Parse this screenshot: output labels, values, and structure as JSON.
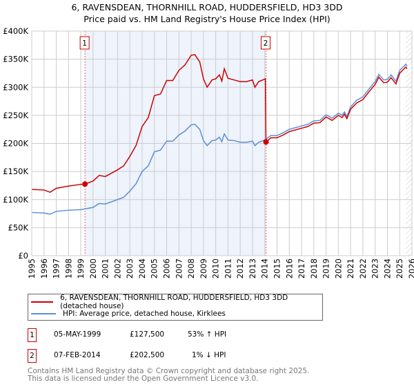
{
  "title": "6, RAVENSDEAN, THORNHILL ROAD, HUDDERSFIELD, HD3 3DD",
  "subtitle": "Price paid vs. HM Land Registry's House Price Index (HPI)",
  "chart_data": {
    "type": "line",
    "title": "6, RAVENSDEAN, THORNHILL ROAD, HUDDERSFIELD, HD3 3DD",
    "subtitle": "Price paid vs. HM Land Registry's House Price Index (HPI)",
    "xlim": [
      1995,
      2026
    ],
    "ylim": [
      0,
      400000
    ],
    "y_ticks": [
      {
        "v": 0,
        "label": "£0"
      },
      {
        "v": 50000,
        "label": "£50K"
      },
      {
        "v": 100000,
        "label": "£100K"
      },
      {
        "v": 150000,
        "label": "£150K"
      },
      {
        "v": 200000,
        "label": "£200K"
      },
      {
        "v": 250000,
        "label": "£250K"
      },
      {
        "v": 300000,
        "label": "£300K"
      },
      {
        "v": 350000,
        "label": "£350K"
      },
      {
        "v": 400000,
        "label": "£400K"
      }
    ],
    "x_ticks": [
      "1995",
      "1996",
      "1997",
      "1998",
      "1999",
      "2000",
      "2001",
      "2002",
      "2003",
      "2004",
      "2005",
      "2006",
      "2007",
      "2008",
      "2009",
      "2010",
      "2011",
      "2012",
      "2013",
      "2014",
      "2015",
      "2016",
      "2017",
      "2018",
      "2019",
      "2020",
      "2021",
      "2022",
      "2023",
      "2024",
      "2025",
      "2026"
    ],
    "grid": true,
    "shaded_range": [
      1999.34,
      2014.1
    ],
    "forecast_hatch_from": 2025.5,
    "series": [
      {
        "name": "6, RAVENSDEAN, THORNHILL ROAD, HUDDERSFIELD, HD3 3DD (detached house)",
        "color": "#cc0000",
        "points": [
          [
            1995,
            118000
          ],
          [
            1996,
            117000
          ],
          [
            1996.5,
            113000
          ],
          [
            1997,
            120000
          ],
          [
            1998,
            124000
          ],
          [
            1999,
            127000
          ],
          [
            1999.34,
            127500
          ],
          [
            2000,
            133000
          ],
          [
            2000.5,
            143000
          ],
          [
            2001,
            141000
          ],
          [
            2002,
            153000
          ],
          [
            2002.5,
            160000
          ],
          [
            2003,
            177000
          ],
          [
            2003.5,
            196000
          ],
          [
            2004,
            230000
          ],
          [
            2004.5,
            246000
          ],
          [
            2005,
            285000
          ],
          [
            2005.5,
            288000
          ],
          [
            2006,
            312000
          ],
          [
            2006.5,
            312000
          ],
          [
            2007,
            330000
          ],
          [
            2007.5,
            340000
          ],
          [
            2008,
            357000
          ],
          [
            2008.3,
            358000
          ],
          [
            2008.7,
            345000
          ],
          [
            2009,
            315000
          ],
          [
            2009.3,
            300000
          ],
          [
            2009.7,
            313000
          ],
          [
            2010,
            315000
          ],
          [
            2010.3,
            322000
          ],
          [
            2010.5,
            311000
          ],
          [
            2010.7,
            333000
          ],
          [
            2011,
            316000
          ],
          [
            2011.5,
            313000
          ],
          [
            2012,
            310000
          ],
          [
            2012.5,
            310000
          ],
          [
            2013,
            313000
          ],
          [
            2013.2,
            300000
          ],
          [
            2013.5,
            310000
          ],
          [
            2014.05,
            315000
          ],
          [
            2014.1,
            202500
          ],
          [
            2014.5,
            210000
          ],
          [
            2015,
            210000
          ],
          [
            2015.5,
            215000
          ],
          [
            2016,
            221000
          ],
          [
            2016.5,
            224000
          ],
          [
            2017,
            227000
          ],
          [
            2017.5,
            230000
          ],
          [
            2018,
            236000
          ],
          [
            2018.5,
            237000
          ],
          [
            2019,
            247000
          ],
          [
            2019.5,
            241000
          ],
          [
            2020,
            250000
          ],
          [
            2020.3,
            246000
          ],
          [
            2020.5,
            252000
          ],
          [
            2020.7,
            244000
          ],
          [
            2021,
            261000
          ],
          [
            2021.5,
            272000
          ],
          [
            2022,
            278000
          ],
          [
            2022.5,
            292000
          ],
          [
            2023,
            305000
          ],
          [
            2023.3,
            318000
          ],
          [
            2023.7,
            308000
          ],
          [
            2024,
            309000
          ],
          [
            2024.3,
            317000
          ],
          [
            2024.7,
            306000
          ],
          [
            2025,
            325000
          ],
          [
            2025.5,
            336000
          ],
          [
            2025.6,
            333000
          ]
        ]
      },
      {
        "name": "HPI: Average price, detached house, Kirklees",
        "color": "#5b8fd6",
        "points": [
          [
            1995,
            77000
          ],
          [
            1996,
            76000
          ],
          [
            1996.5,
            74000
          ],
          [
            1997,
            79000
          ],
          [
            1998,
            81000
          ],
          [
            1999,
            82000
          ],
          [
            2000,
            86000
          ],
          [
            2000.5,
            93000
          ],
          [
            2001,
            92000
          ],
          [
            2002,
            100000
          ],
          [
            2002.5,
            104000
          ],
          [
            2003,
            115000
          ],
          [
            2003.5,
            128000
          ],
          [
            2004,
            150000
          ],
          [
            2004.5,
            160000
          ],
          [
            2005,
            185000
          ],
          [
            2005.5,
            188000
          ],
          [
            2006,
            204000
          ],
          [
            2006.5,
            204000
          ],
          [
            2007,
            215000
          ],
          [
            2007.5,
            222000
          ],
          [
            2008,
            233000
          ],
          [
            2008.3,
            234000
          ],
          [
            2008.7,
            225000
          ],
          [
            2009,
            205000
          ],
          [
            2009.3,
            196000
          ],
          [
            2009.7,
            205000
          ],
          [
            2010,
            206000
          ],
          [
            2010.3,
            211000
          ],
          [
            2010.5,
            203000
          ],
          [
            2010.7,
            217000
          ],
          [
            2011,
            206000
          ],
          [
            2011.5,
            205000
          ],
          [
            2012,
            202000
          ],
          [
            2012.5,
            202000
          ],
          [
            2013,
            204000
          ],
          [
            2013.2,
            196000
          ],
          [
            2013.5,
            202000
          ],
          [
            2014,
            206000
          ],
          [
            2014.5,
            214000
          ],
          [
            2015,
            214000
          ],
          [
            2015.5,
            219000
          ],
          [
            2016,
            225000
          ],
          [
            2016.5,
            228000
          ],
          [
            2017,
            231000
          ],
          [
            2017.5,
            234000
          ],
          [
            2018,
            240000
          ],
          [
            2018.5,
            241000
          ],
          [
            2019,
            251000
          ],
          [
            2019.5,
            245000
          ],
          [
            2020,
            254000
          ],
          [
            2020.3,
            250000
          ],
          [
            2020.5,
            256000
          ],
          [
            2020.7,
            248000
          ],
          [
            2021,
            265000
          ],
          [
            2021.5,
            277000
          ],
          [
            2022,
            283000
          ],
          [
            2022.5,
            297000
          ],
          [
            2023,
            310000
          ],
          [
            2023.3,
            323000
          ],
          [
            2023.7,
            313000
          ],
          [
            2024,
            314000
          ],
          [
            2024.3,
            322000
          ],
          [
            2024.7,
            311000
          ],
          [
            2025,
            330000
          ],
          [
            2025.5,
            341000
          ],
          [
            2025.6,
            338000
          ]
        ]
      }
    ],
    "sales": [
      {
        "label": "1",
        "x": 1999.34,
        "y": 127500
      },
      {
        "label": "2",
        "x": 2014.1,
        "y": 202500
      }
    ],
    "legend_position": "below"
  },
  "legend": {
    "property": "6, RAVENSDEAN, THORNHILL ROAD, HUDDERSFIELD, HD3 3DD (detached house)",
    "hpi": "HPI: Average price, detached house, Kirklees"
  },
  "transactions": [
    {
      "num": "1",
      "date": "05-MAY-1999",
      "price": "£127,500",
      "hpi": "53% ↑ HPI"
    },
    {
      "num": "2",
      "date": "07-FEB-2014",
      "price": "£202,500",
      "hpi": "1% ↓ HPI"
    }
  ],
  "footer": {
    "line1": "Contains HM Land Registry data © Crown copyright and database right 2025.",
    "line2": "This data is licensed under the Open Government Licence v3.0."
  }
}
